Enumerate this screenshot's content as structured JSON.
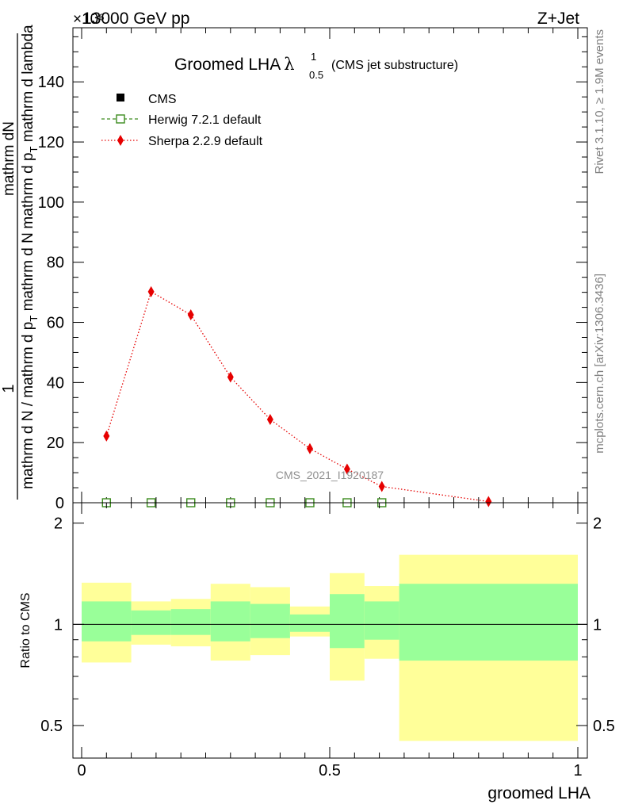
{
  "header": {
    "left_label": "13000 GeV pp",
    "right_label": "Z+Jet",
    "exponent_label": "×10⁶"
  },
  "side_notes": {
    "rivet": "Rivet 3.1.10, ≥ 1.9M events",
    "mcplots": "mcplots.cern.ch [arXiv:1306.3436]"
  },
  "chart_data": [
    {
      "type": "line",
      "title_main": "Groomed LHA",
      "title_lambda": "λ",
      "title_sup": "1",
      "title_sub": "0.5",
      "subtitle": "(CMS jet substructure)",
      "ylabel_top": "1",
      "ylabel_mid": "mathrm dN",
      "ylabel_mid2": "mathrm d p",
      "ylabel_mid2_sub": "T",
      "ylabel_mid3": " mathrm d lambda",
      "ylabel_bottom": "mathrm d N / mathrm d p",
      "ylabel_bottom_sub": "T",
      "ylabel_bottom2": " mathrm d N",
      "ylim": [
        0,
        158
      ],
      "y_multiplier": "1e6",
      "ytick_labels": [
        "0",
        "20",
        "40",
        "60",
        "80",
        "100",
        "120",
        "140"
      ],
      "yticks": [
        0,
        20,
        40,
        60,
        80,
        100,
        120,
        140
      ],
      "watermark": "CMS_2021_I1920187",
      "legend_position": "top-left",
      "legend": [
        {
          "label": "CMS",
          "color": "#000000",
          "marker": "square-filled"
        },
        {
          "label": "Herwig 7.2.1 default",
          "color": "#3c8c1e",
          "marker": "square-open",
          "line": "dashed"
        },
        {
          "label": "Sherpa 2.2.9 default",
          "color": "#e60000",
          "marker": "diamond",
          "line": "dotted"
        }
      ],
      "series": [
        {
          "name": "CMS",
          "x": [
            0.05,
            0.14,
            0.22,
            0.3,
            0.38,
            0.46,
            0.535,
            0.605
          ],
          "values": [
            0,
            0,
            0,
            0,
            0,
            0,
            0,
            0
          ]
        },
        {
          "name": "Herwig 7.2.1 default",
          "x": [
            0.05,
            0.14,
            0.22,
            0.3,
            0.38,
            0.46,
            0.535,
            0.605
          ],
          "values": [
            0,
            0,
            0,
            0,
            0,
            0,
            0,
            0
          ]
        },
        {
          "name": "Sherpa 2.2.9 default",
          "x": [
            0.05,
            0.14,
            0.22,
            0.3,
            0.38,
            0.46,
            0.535,
            0.605,
            0.82
          ],
          "values": [
            22.2,
            70.2,
            62.5,
            41.8,
            27.7,
            18.0,
            11.2,
            5.4,
            0.4
          ]
        }
      ]
    },
    {
      "type": "area",
      "ylabel": "Ratio to CMS",
      "xlabel": "groomed LHA",
      "xlim": [
        0,
        1
      ],
      "ylim": [
        0.4,
        2.3
      ],
      "y_scale": "log",
      "xtick_labels": [
        "0",
        "0.5",
        "1"
      ],
      "xticks": [
        0,
        0.5,
        1
      ],
      "ytick_labels": [
        "0.5",
        "1",
        "2"
      ],
      "yticks": [
        0.5,
        1,
        2
      ],
      "reference_line": 1,
      "bins": [
        {
          "x0": 0.0,
          "x1": 0.1,
          "green": [
            0.89,
            1.17
          ],
          "yellow": [
            0.77,
            1.33
          ]
        },
        {
          "x0": 0.1,
          "x1": 0.18,
          "green": [
            0.93,
            1.1
          ],
          "yellow": [
            0.87,
            1.17
          ]
        },
        {
          "x0": 0.18,
          "x1": 0.26,
          "green": [
            0.93,
            1.11
          ],
          "yellow": [
            0.86,
            1.19
          ]
        },
        {
          "x0": 0.26,
          "x1": 0.34,
          "green": [
            0.89,
            1.17
          ],
          "yellow": [
            0.78,
            1.32
          ]
        },
        {
          "x0": 0.34,
          "x1": 0.42,
          "green": [
            0.91,
            1.15
          ],
          "yellow": [
            0.81,
            1.29
          ]
        },
        {
          "x0": 0.42,
          "x1": 0.5,
          "green": [
            0.95,
            1.07
          ],
          "yellow": [
            0.92,
            1.13
          ]
        },
        {
          "x0": 0.5,
          "x1": 0.57,
          "green": [
            0.85,
            1.23
          ],
          "yellow": [
            0.68,
            1.42
          ]
        },
        {
          "x0": 0.57,
          "x1": 0.64,
          "green": [
            0.9,
            1.17
          ],
          "yellow": [
            0.79,
            1.3
          ]
        },
        {
          "x0": 0.64,
          "x1": 1.0,
          "green": [
            0.78,
            1.32
          ],
          "yellow": [
            0.45,
            1.61
          ]
        }
      ],
      "colors": {
        "green": "#99ff99",
        "yellow": "#ffff99"
      }
    }
  ]
}
